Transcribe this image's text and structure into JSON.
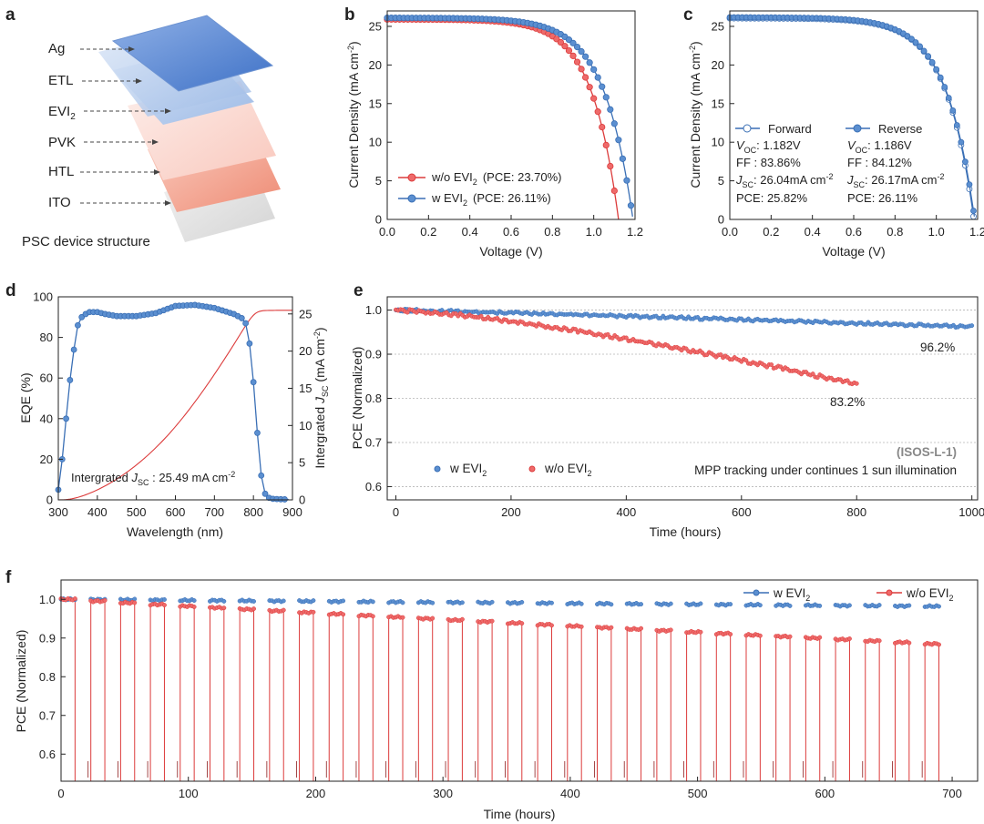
{
  "colors": {
    "blue": "#3a6fb5",
    "red": "#dc3b3b",
    "blue_fill": "#5b8fd0",
    "red_fill": "#ee6a6a",
    "grid": "#b5b5b5"
  },
  "panel_a": {
    "letter": "a",
    "layers": [
      "Ag",
      "ETL",
      "EVI",
      "PVK",
      "HTL",
      "ITO"
    ],
    "evi_sub": "2",
    "caption": "PSC device structure"
  },
  "chart_data": [
    {
      "id": "b",
      "type": "line",
      "xlabel": "Voltage (V)",
      "ylabel": "Current Density (mA cm",
      "ylabel_sup": "-2",
      "ylabel_end": ")",
      "xlim": [
        0,
        1.2
      ],
      "ylim": [
        0,
        27
      ],
      "xticks": [
        "0.0",
        "0.2",
        "0.4",
        "0.6",
        "0.8",
        "1.0",
        "1.2"
      ],
      "yticks": [
        "0",
        "5",
        "10",
        "15",
        "20",
        "25"
      ],
      "series": [
        {
          "name": "w/o EVI",
          "sub": "2",
          "pce": "(PCE: 23.70%)",
          "voc": 1.12,
          "jsc": 25.9,
          "n": 5,
          "color": "red"
        },
        {
          "name": "w EVI",
          "sub": "2",
          "pce": "(PCE: 26.11%)",
          "voc": 1.19,
          "jsc": 26.1,
          "n": 5.4,
          "color": "blue"
        }
      ]
    },
    {
      "id": "c",
      "type": "line",
      "xlabel": "Voltage (V)",
      "ylabel": "Current Density (mA cm",
      "ylabel_sup": "-2",
      "ylabel_end": ")",
      "xlim": [
        0,
        1.2
      ],
      "ylim": [
        0,
        27
      ],
      "xticks": [
        "0.0",
        "0.2",
        "0.4",
        "0.6",
        "0.8",
        "1.0",
        "1.2"
      ],
      "yticks": [
        "0",
        "5",
        "10",
        "15",
        "20",
        "25"
      ],
      "series": [
        {
          "name": "Forward",
          "voc": 1.182,
          "jsc": 26.04,
          "n": 5.2,
          "open": true,
          "lines": [
            "V",
            "OC",
            ": 1.182V",
            "FF : 83.86%",
            "J",
            "SC",
            ": 26.04mA cm",
            "-2",
            "PCE: 25.82%"
          ]
        },
        {
          "name": "Reverse",
          "voc": 1.186,
          "jsc": 26.17,
          "n": 5.3,
          "open": false,
          "lines": [
            "V",
            "OC",
            ": 1.186V",
            "FF : 84.12%",
            "J",
            "SC",
            ": 26.17mA cm",
            "-2",
            "PCE: 26.11%"
          ]
        }
      ]
    },
    {
      "id": "d",
      "type": "line",
      "xlabel": "Wavelength (nm)",
      "ylabel": "EQE (%)",
      "y2label": "Intergrated ",
      "y2label_j": "J",
      "y2label_sub": "SC",
      "y2label_end": " (mA cm",
      "y2label_sup": "-2",
      "y2label_close": ")",
      "xlim": [
        300,
        900
      ],
      "ylim": [
        0,
        100
      ],
      "y2lim": [
        0,
        27.3
      ],
      "xticks": [
        "300",
        "400",
        "500",
        "600",
        "700",
        "800",
        "900"
      ],
      "yticks": [
        "0",
        "20",
        "40",
        "60",
        "80",
        "100"
      ],
      "y2ticks": [
        "0",
        "5",
        "10",
        "15",
        "20",
        "25"
      ],
      "annotation": [
        "Intergrated ",
        "J",
        "SC",
        " : 25.49 mA cm",
        "-2"
      ],
      "eqe": [
        [
          300,
          5
        ],
        [
          310,
          20
        ],
        [
          320,
          40
        ],
        [
          330,
          59
        ],
        [
          340,
          74
        ],
        [
          350,
          86
        ],
        [
          360,
          90
        ],
        [
          370,
          91.5
        ],
        [
          380,
          92.5
        ],
        [
          400,
          92.5
        ],
        [
          420,
          91.5
        ],
        [
          450,
          90.5
        ],
        [
          500,
          90.5
        ],
        [
          550,
          92
        ],
        [
          600,
          95.5
        ],
        [
          650,
          96
        ],
        [
          700,
          94.5
        ],
        [
          750,
          91.5
        ],
        [
          770,
          89.5
        ],
        [
          780,
          87
        ],
        [
          790,
          77
        ],
        [
          800,
          58
        ],
        [
          810,
          33
        ],
        [
          820,
          12
        ],
        [
          830,
          3
        ],
        [
          840,
          1
        ],
        [
          850,
          0.5
        ],
        [
          870,
          0.3
        ],
        [
          890,
          0.2
        ]
      ]
    },
    {
      "id": "e",
      "type": "scatter",
      "xlabel": "Time (hours)",
      "ylabel": "PCE (Normalized)",
      "xlim": [
        -15,
        1010
      ],
      "ylim": [
        0.57,
        1.03
      ],
      "xticks": [
        "0",
        "200",
        "400",
        "600",
        "800",
        "1000"
      ],
      "yticks": [
        "0.6",
        "0.7",
        "0.8",
        "0.9",
        "1.0"
      ],
      "series": [
        {
          "name": "w EVI",
          "sub": "2",
          "end_label": "96.2%",
          "color": "blue",
          "t_end": 1000,
          "y_end": 0.962
        },
        {
          "name": "w/o EVI",
          "sub": "2",
          "end_label": "83.2%",
          "color": "red",
          "t_end": 800,
          "y_end": 0.832
        }
      ],
      "tag": "(ISOS-L-1)",
      "note": "MPP tracking under continues 1 sun illumination"
    },
    {
      "id": "f",
      "type": "line",
      "xlabel": "Time (hours)",
      "ylabel": "PCE (Normalized)",
      "xlim": [
        0,
        720
      ],
      "ylim": [
        0.53,
        1.05
      ],
      "xticks": [
        "0",
        "100",
        "200",
        "300",
        "400",
        "500",
        "600",
        "700"
      ],
      "yticks": [
        "0.6",
        "0.7",
        "0.8",
        "0.9",
        "1.0"
      ],
      "cycles": 30,
      "period": 23.4,
      "on_duration": 11,
      "series": [
        {
          "name": "w EVI",
          "sub": "2",
          "color": "blue",
          "start": 1.0,
          "end": 0.982
        },
        {
          "name": "w/o EVI",
          "sub": "2",
          "color": "red",
          "start": 1.0,
          "end": 0.885
        }
      ]
    }
  ]
}
